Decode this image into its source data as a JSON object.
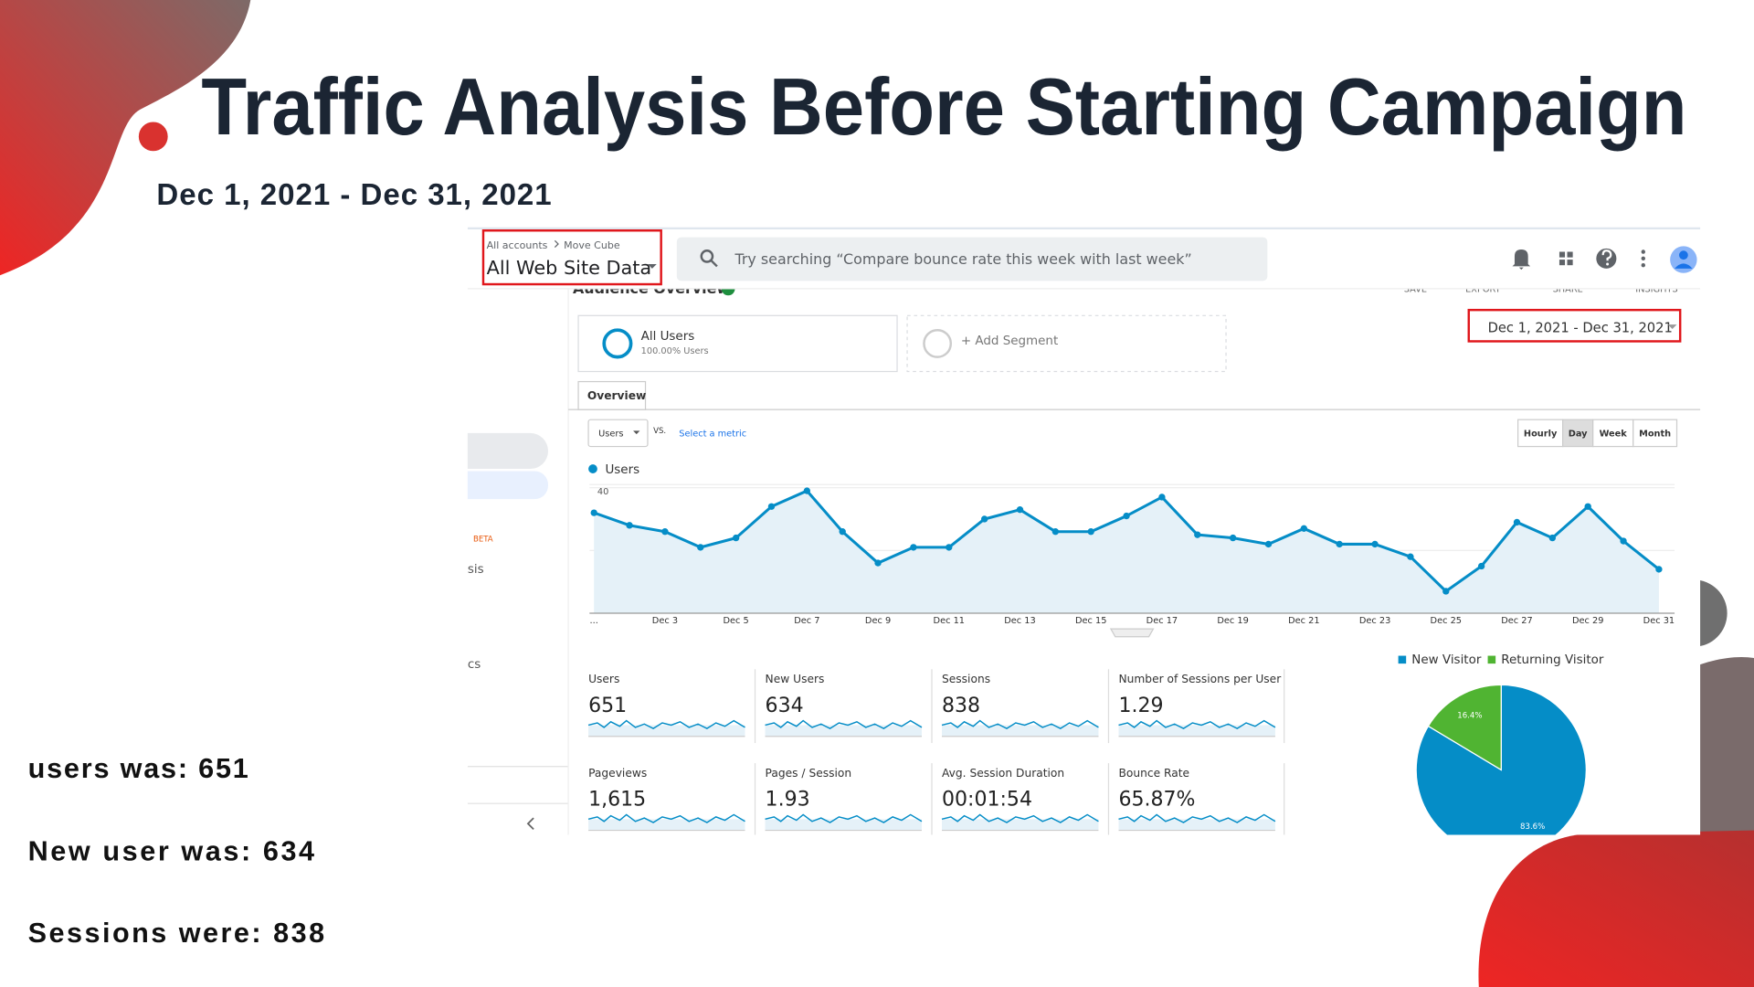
{
  "slide": {
    "title": "Traffic Analysis Before Starting Campaign",
    "date_range": "Dec 1, 2021 - Dec 31, 2021",
    "notes": [
      "users was: 651",
      "New user was: 634",
      "Sessions were: 838"
    ]
  },
  "app": {
    "breadcrumb": [
      "All accounts",
      "Move Cube"
    ],
    "property": "All Web Site Data",
    "search_placeholder": "Try searching “Compare bounce rate this week with last week”",
    "toolbar": [
      "Audience Overview",
      "SAVE",
      "EXPORT",
      "SHARE",
      "INSIGHTS"
    ],
    "sidebar": [
      "BETA",
      "sis",
      "cs"
    ],
    "segments": {
      "active": "All Users",
      "active_share": "100.00% Users",
      "add": "+ Add Segment"
    },
    "date_range": "Dec 1, 2021 - Dec 31, 2021",
    "tab": "Overview",
    "metric_select": "Users",
    "vs": "VS.",
    "select_metric": "Select a metric",
    "granularity": [
      "Hourly",
      "Day",
      "Week",
      "Month"
    ],
    "active_granularity": "Day",
    "metrics": [
      {
        "label": "Users",
        "value": "651"
      },
      {
        "label": "New Users",
        "value": "634"
      },
      {
        "label": "Sessions",
        "value": "838"
      },
      {
        "label": "Number of Sessions per User",
        "value": "1.29"
      },
      {
        "label": "Pageviews",
        "value": "1,615"
      },
      {
        "label": "Pages / Session",
        "value": "1.93"
      },
      {
        "label": "Avg. Session Duration",
        "value": "00:01:54"
      },
      {
        "label": "Bounce Rate",
        "value": "65.87%"
      }
    ]
  },
  "chart_data": [
    {
      "type": "line",
      "categories": [
        "...",
        null,
        "Dec 3",
        null,
        "Dec 5",
        null,
        "Dec 7",
        null,
        "Dec 9",
        null,
        "Dec 11",
        null,
        "Dec 13",
        null,
        "Dec 15",
        null,
        "Dec 17",
        null,
        "Dec 19",
        null,
        "Dec 21",
        null,
        "Dec 23",
        null,
        "Dec 25",
        null,
        "Dec 27",
        null,
        "Dec 29",
        null,
        "Dec 31"
      ],
      "series": [
        {
          "name": "Users",
          "color": "#058dc7",
          "values": [
            32,
            28,
            26,
            21,
            24,
            34,
            39,
            26,
            16,
            21,
            21,
            30,
            33,
            26,
            26,
            31,
            37,
            25,
            24,
            22,
            27,
            22,
            22,
            18,
            7,
            15,
            29,
            24,
            34,
            23,
            14
          ]
        }
      ],
      "ylim": [
        0,
        41
      ],
      "yticks": [
        20,
        40
      ],
      "grid": true,
      "area_color": "#e5f1f8"
    },
    {
      "type": "pie",
      "categories": [
        "New Visitor",
        "Returning Visitor"
      ],
      "values": [
        83.6,
        16.4
      ],
      "value_labels": [
        "83.6%",
        "16.4%"
      ],
      "colors": [
        "#058dc7",
        "#50b432"
      ],
      "legend": "top"
    }
  ]
}
